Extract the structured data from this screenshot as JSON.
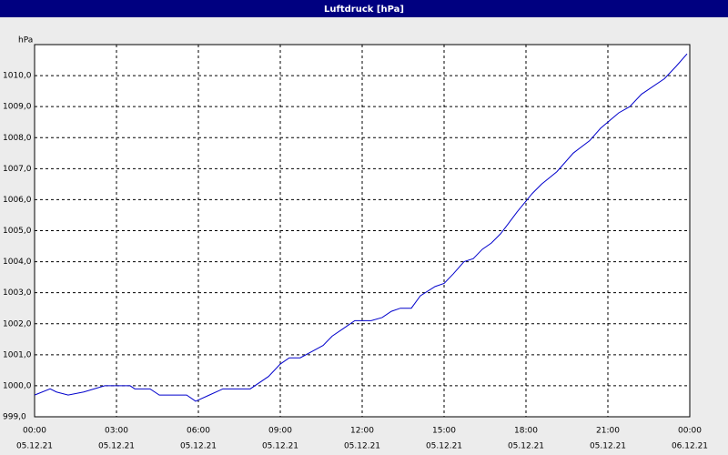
{
  "chart_data": {
    "type": "line",
    "title": "Luftdruck [hPa]",
    "y_label": "hPa",
    "x": [
      0,
      0.57,
      0.8,
      1.23,
      1.8,
      2.57,
      3.5,
      3.67,
      4.23,
      4.57,
      5.57,
      5.9,
      6.4,
      6.9,
      7.9,
      8.57,
      9.0,
      9.33,
      9.73,
      10.57,
      10.9,
      11.4,
      11.73,
      12.33,
      12.73,
      13.07,
      13.4,
      13.8,
      14.13,
      14.67,
      15.0,
      15.33,
      15.73,
      16.07,
      16.4,
      16.73,
      17.07,
      17.33,
      17.67,
      18.23,
      18.57,
      19.13,
      19.73,
      20.33,
      20.73,
      21.4,
      21.8,
      22.23,
      23.07,
      23.5,
      23.9
    ],
    "series": [
      {
        "color": "#0000cc",
        "values": [
          999.7,
          999.9,
          999.8,
          999.7,
          999.8,
          1000.0,
          1000.0,
          999.9,
          999.9,
          999.7,
          999.7,
          999.5,
          999.7,
          999.9,
          999.9,
          1000.3,
          1000.7,
          1000.9,
          1000.9,
          1001.3,
          1001.6,
          1001.9,
          1002.1,
          1002.1,
          1002.2,
          1002.4,
          1002.5,
          1002.5,
          1002.9,
          1003.2,
          1003.3,
          1003.6,
          1004.0,
          1004.1,
          1004.4,
          1004.6,
          1004.9,
          1005.2,
          1005.6,
          1006.2,
          1006.5,
          1006.9,
          1007.5,
          1007.9,
          1008.3,
          1008.8,
          1009.0,
          1009.4,
          1009.9,
          1010.3,
          1010.7
        ]
      }
    ],
    "xlim": [
      0,
      24
    ],
    "xticks": [
      {
        "value": 0,
        "label": "00:00"
      },
      {
        "value": 3,
        "label": "03:00"
      },
      {
        "value": 6,
        "label": "06:00"
      },
      {
        "value": 9,
        "label": "09:00"
      },
      {
        "value": 12,
        "label": "12:00"
      },
      {
        "value": 15,
        "label": "15:00"
      },
      {
        "value": 18,
        "label": "18:00"
      },
      {
        "value": 21,
        "label": "21:00"
      },
      {
        "value": 24,
        "label": "00:00"
      }
    ],
    "xtick_dates": [
      "05.12.21",
      "05.12.21",
      "05.12.21",
      "05.12.21",
      "05.12.21",
      "05.12.21",
      "05.12.21",
      "05.12.21",
      "06.12.21"
    ],
    "ylim": [
      999,
      1011
    ],
    "yticks": [
      {
        "value": 999,
        "label": "999,0"
      },
      {
        "value": 1000,
        "label": "1000,0"
      },
      {
        "value": 1001,
        "label": "1001,0"
      },
      {
        "value": 1002,
        "label": "1002,0"
      },
      {
        "value": 1003,
        "label": "1003,0"
      },
      {
        "value": 1004,
        "label": "1004,0"
      },
      {
        "value": 1005,
        "label": "1005,0"
      },
      {
        "value": 1006,
        "label": "1006,0"
      },
      {
        "value": 1007,
        "label": "1007,0"
      },
      {
        "value": 1008,
        "label": "1008,0"
      },
      {
        "value": 1009,
        "label": "1009,0"
      },
      {
        "value": 1010,
        "label": "1010,0"
      }
    ],
    "grid": true
  }
}
